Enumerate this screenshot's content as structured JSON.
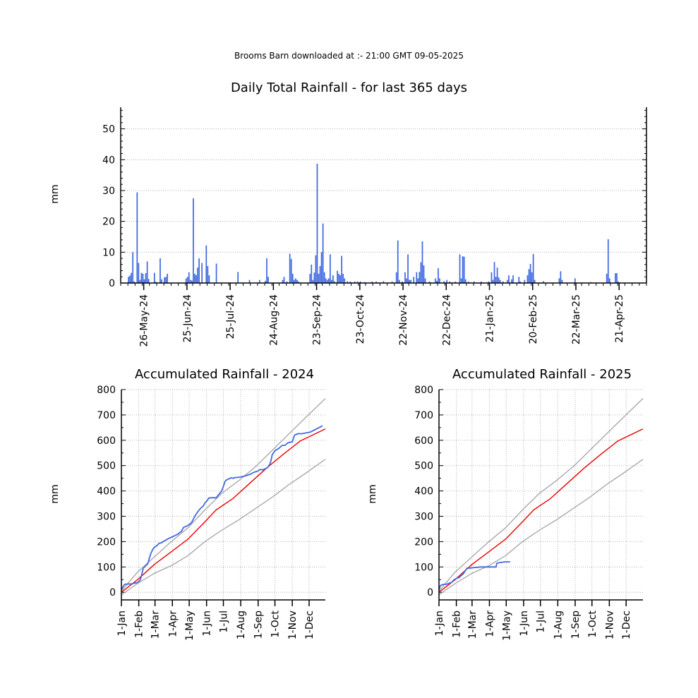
{
  "header": "Brooms Barn downloaded at :- 21:00 GMT 09-05-2025",
  "colors": {
    "observed": "#4169e1",
    "mean": "#ee0000",
    "band": "#a9a9a9",
    "grid": "#b0b0b0"
  },
  "chart_data": [
    {
      "type": "bar",
      "title": "Daily Total Rainfall - for last 365 days",
      "ylabel": "mm",
      "ylim": [
        0,
        57
      ],
      "yticks": [
        0,
        10,
        20,
        30,
        40,
        50
      ],
      "x_start": "2024-05-10",
      "x_end": "2025-05-09",
      "xtick_labels": [
        "26-May-24",
        "25-Jun-24",
        "25-Jul-24",
        "24-Aug-24",
        "23-Sep-24",
        "23-Oct-24",
        "22-Nov-24",
        "22-Dec-24",
        "21-Jan-25",
        "20-Feb-25",
        "22-Mar-25",
        "21-Apr-25"
      ],
      "grid": "horizontal dotted",
      "points": [
        [
          "2024-05-15",
          2.0
        ],
        [
          "2024-05-16",
          2.4
        ],
        [
          "2024-05-17",
          3.3
        ],
        [
          "2024-05-18",
          10.0
        ],
        [
          "2024-05-19",
          0.5
        ],
        [
          "2024-05-21",
          29.4
        ],
        [
          "2024-05-22",
          6.5
        ],
        [
          "2024-05-23",
          1.0
        ],
        [
          "2024-05-24",
          3.3
        ],
        [
          "2024-05-25",
          3.0
        ],
        [
          "2024-05-26",
          1.2
        ],
        [
          "2024-05-27",
          3.2
        ],
        [
          "2024-05-28",
          7.0
        ],
        [
          "2024-05-29",
          1.3
        ],
        [
          "2024-06-02",
          3.3
        ],
        [
          "2024-06-03",
          0.4
        ],
        [
          "2024-06-06",
          8.0
        ],
        [
          "2024-06-07",
          1.2
        ],
        [
          "2024-06-09",
          1.8
        ],
        [
          "2024-06-10",
          2.0
        ],
        [
          "2024-06-11",
          3.0
        ],
        [
          "2024-06-24",
          1.5
        ],
        [
          "2024-06-25",
          2.0
        ],
        [
          "2024-06-26",
          3.5
        ],
        [
          "2024-06-27",
          1.0
        ],
        [
          "2024-06-28",
          0.8
        ],
        [
          "2024-06-29",
          27.5
        ],
        [
          "2024-06-30",
          3.0
        ],
        [
          "2024-07-01",
          2.5
        ],
        [
          "2024-07-02",
          5.0
        ],
        [
          "2024-07-03",
          8.0
        ],
        [
          "2024-07-05",
          6.5
        ],
        [
          "2024-07-08",
          12.2
        ],
        [
          "2024-07-09",
          5.5
        ],
        [
          "2024-07-10",
          2.5
        ],
        [
          "2024-07-15",
          6.3
        ],
        [
          "2024-07-30",
          3.6
        ],
        [
          "2024-08-07",
          1.0
        ],
        [
          "2024-08-14",
          1.0
        ],
        [
          "2024-08-18",
          0.7
        ],
        [
          "2024-08-19",
          8.0
        ],
        [
          "2024-08-20",
          2.0
        ],
        [
          "2024-08-30",
          1.0
        ],
        [
          "2024-08-31",
          2.0
        ],
        [
          "2024-09-02",
          0.5
        ],
        [
          "2024-09-04",
          9.5
        ],
        [
          "2024-09-05",
          7.8
        ],
        [
          "2024-09-06",
          3.0
        ],
        [
          "2024-09-07",
          1.0
        ],
        [
          "2024-09-08",
          1.5
        ],
        [
          "2024-09-09",
          1.0
        ],
        [
          "2024-09-10",
          0.5
        ],
        [
          "2024-09-18",
          3.0
        ],
        [
          "2024-09-19",
          6.0
        ],
        [
          "2024-09-20",
          1.0
        ],
        [
          "2024-09-21",
          3.4
        ],
        [
          "2024-09-22",
          9.0
        ],
        [
          "2024-09-23",
          38.7
        ],
        [
          "2024-09-24",
          3.0
        ],
        [
          "2024-09-25",
          5.5
        ],
        [
          "2024-09-26",
          10.0
        ],
        [
          "2024-09-27",
          19.3
        ],
        [
          "2024-09-28",
          3.5
        ],
        [
          "2024-09-29",
          1.5
        ],
        [
          "2024-09-30",
          1.0
        ],
        [
          "2024-10-01",
          1.5
        ],
        [
          "2024-10-02",
          9.3
        ],
        [
          "2024-10-03",
          1.0
        ],
        [
          "2024-10-04",
          2.5
        ],
        [
          "2024-10-05",
          0.6
        ],
        [
          "2024-10-07",
          4.0
        ],
        [
          "2024-10-08",
          3.0
        ],
        [
          "2024-10-09",
          2.5
        ],
        [
          "2024-10-10",
          8.8
        ],
        [
          "2024-10-11",
          3.0
        ],
        [
          "2024-10-12",
          1.5
        ],
        [
          "2024-10-14",
          0.6
        ],
        [
          "2024-10-16",
          0.5
        ],
        [
          "2024-10-19",
          0.5
        ],
        [
          "2024-10-21",
          0.5
        ],
        [
          "2024-10-23",
          0.5
        ],
        [
          "2024-10-26",
          0.3
        ],
        [
          "2024-10-31",
          0.5
        ],
        [
          "2024-11-03",
          0.5
        ],
        [
          "2024-11-08",
          0.6
        ],
        [
          "2024-11-14",
          0.5
        ],
        [
          "2024-11-17",
          3.5
        ],
        [
          "2024-11-18",
          13.8
        ],
        [
          "2024-11-19",
          1.0
        ],
        [
          "2024-11-21",
          0.5
        ],
        [
          "2024-11-23",
          3.5
        ],
        [
          "2024-11-24",
          1.5
        ],
        [
          "2024-11-25",
          9.3
        ],
        [
          "2024-11-26",
          1.0
        ],
        [
          "2024-11-27",
          1.0
        ],
        [
          "2024-11-29",
          2.0
        ],
        [
          "2024-12-01",
          3.5
        ],
        [
          "2024-12-02",
          1.5
        ],
        [
          "2024-12-03",
          3.6
        ],
        [
          "2024-12-04",
          6.7
        ],
        [
          "2024-12-05",
          13.5
        ],
        [
          "2024-12-06",
          5.7
        ],
        [
          "2024-12-07",
          1.5
        ],
        [
          "2024-12-10",
          0.5
        ],
        [
          "2024-12-14",
          1.5
        ],
        [
          "2024-12-15",
          0.7
        ],
        [
          "2024-12-16",
          4.8
        ],
        [
          "2024-12-17",
          1.5
        ],
        [
          "2024-12-20",
          0.6
        ],
        [
          "2024-12-22",
          1.0
        ],
        [
          "2024-12-24",
          0.5
        ],
        [
          "2024-12-28",
          0.5
        ],
        [
          "2024-12-31",
          9.3
        ],
        [
          "2025-01-01",
          1.5
        ],
        [
          "2025-01-02",
          8.7
        ],
        [
          "2025-01-03",
          8.5
        ],
        [
          "2025-01-04",
          1.2
        ],
        [
          "2025-01-06",
          0.5
        ],
        [
          "2025-01-10",
          0.5
        ],
        [
          "2025-01-15",
          0.5
        ],
        [
          "2025-01-20",
          0.5
        ],
        [
          "2025-01-22",
          3.5
        ],
        [
          "2025-01-23",
          1.0
        ],
        [
          "2025-01-24",
          6.8
        ],
        [
          "2025-01-25",
          2.0
        ],
        [
          "2025-01-26",
          5.0
        ],
        [
          "2025-01-27",
          1.8
        ],
        [
          "2025-01-28",
          1.0
        ],
        [
          "2025-01-30",
          0.5
        ],
        [
          "2025-02-02",
          1.0
        ],
        [
          "2025-02-03",
          2.5
        ],
        [
          "2025-02-05",
          1.2
        ],
        [
          "2025-02-06",
          2.5
        ],
        [
          "2025-02-10",
          2.0
        ],
        [
          "2025-02-11",
          0.5
        ],
        [
          "2025-02-14",
          1.0
        ],
        [
          "2025-02-16",
          2.5
        ],
        [
          "2025-02-17",
          4.5
        ],
        [
          "2025-02-18",
          6.2
        ],
        [
          "2025-02-19",
          3.5
        ],
        [
          "2025-02-20",
          9.4
        ],
        [
          "2025-02-21",
          1.0
        ],
        [
          "2025-02-27",
          0.6
        ],
        [
          "2025-03-10",
          1.5
        ],
        [
          "2025-03-11",
          3.8
        ],
        [
          "2025-03-12",
          1.0
        ],
        [
          "2025-03-21",
          1.5
        ],
        [
          "2025-04-01",
          0.3
        ],
        [
          "2025-04-12",
          3.0
        ],
        [
          "2025-04-13",
          14.2
        ],
        [
          "2025-04-14",
          1.5
        ],
        [
          "2025-04-18",
          3.2
        ],
        [
          "2025-04-19",
          3.2
        ],
        [
          "2025-04-20",
          0.5
        ]
      ]
    },
    {
      "type": "line",
      "title": "Accumulated Rainfall - 2024",
      "ylabel": "mm",
      "ylim": [
        -30,
        800
      ],
      "yticks": [
        0,
        100,
        200,
        300,
        400,
        500,
        600,
        700,
        800
      ],
      "xticks": [
        1,
        32,
        61,
        92,
        122,
        153,
        183,
        214,
        245,
        275,
        306,
        336
      ],
      "xtick_labels": [
        "1-Jan",
        "1-Feb",
        "1-Mar",
        "1-Apr",
        "1-May",
        "1-Jun",
        "1-Jul",
        "1-Aug",
        "1-Sep",
        "1-Oct",
        "1-Nov",
        "1-Dec"
      ],
      "grid": "dotted both",
      "series": [
        {
          "role": "observed",
          "x": [
            1,
            6,
            8,
            18,
            29,
            32,
            35,
            40,
            48,
            53,
            57,
            60,
            65,
            68,
            72,
            78,
            85,
            95,
            102,
            105,
            108,
            112,
            118,
            125,
            127,
            132,
            138,
            143,
            147,
            150,
            154,
            157,
            162,
            170,
            180,
            183,
            186,
            189,
            193,
            197,
            201,
            203,
            207,
            213,
            220,
            226,
            232,
            238,
            244,
            249,
            252,
            255,
            262,
            266,
            268,
            270,
            274,
            276,
            282,
            288,
            293,
            298,
            306,
            310,
            316,
            323,
            328,
            333,
            338,
            360
          ],
          "y": [
            10,
            30,
            32,
            33,
            38,
            42,
            50,
            95,
            112,
            150,
            170,
            178,
            185,
            193,
            195,
            203,
            212,
            222,
            230,
            236,
            240,
            256,
            262,
            272,
            278,
            300,
            320,
            333,
            340,
            352,
            362,
            372,
            373,
            373,
            400,
            418,
            438,
            444,
            448,
            452,
            450,
            453,
            453,
            455,
            458,
            462,
            467,
            474,
            478,
            485,
            483,
            485,
            492,
            506,
            520,
            542,
            556,
            560,
            568,
            580,
            580,
            590,
            594,
            620,
            626,
            626,
            628,
            630,
            632,
            657
          ]
        },
        {
          "role": "mean",
          "x": [
            1,
            30,
            60,
            90,
            120,
            150,
            170,
            200,
            230,
            260,
            290,
            320,
            365
          ],
          "y": [
            0,
            50,
            110,
            160,
            210,
            278,
            325,
            370,
            430,
            490,
            545,
            597,
            645
          ]
        },
        {
          "role": "upper",
          "x": [
            1,
            30,
            60,
            90,
            120,
            150,
            180,
            210,
            240,
            270,
            300,
            330,
            365
          ],
          "y": [
            5,
            80,
            140,
            200,
            255,
            325,
            390,
            440,
            495,
            560,
            625,
            690,
            765
          ]
        },
        {
          "role": "lower",
          "x": [
            1,
            30,
            60,
            90,
            120,
            150,
            180,
            210,
            240,
            270,
            300,
            330,
            365
          ],
          "y": [
            -10,
            35,
            75,
            105,
            145,
            200,
            245,
            285,
            330,
            375,
            425,
            470,
            525
          ]
        }
      ]
    },
    {
      "type": "line",
      "title": "Accumulated Rainfall - 2025",
      "ylabel": "mm",
      "ylim": [
        -30,
        800
      ],
      "yticks": [
        0,
        100,
        200,
        300,
        400,
        500,
        600,
        700,
        800
      ],
      "xticks": [
        1,
        32,
        60,
        91,
        121,
        152,
        182,
        213,
        244,
        274,
        305,
        335
      ],
      "xtick_labels": [
        "1-Jan",
        "1-Feb",
        "1-Mar",
        "1-Apr",
        "1-May",
        "1-Jun",
        "1-Jul",
        "1-Aug",
        "1-Sep",
        "1-Oct",
        "1-Nov",
        "1-Dec"
      ],
      "grid": "dotted both",
      "series": [
        {
          "role": "observed",
          "x": [
            1,
            3,
            6,
            15,
            24,
            27,
            32,
            37,
            40,
            44,
            48,
            51,
            55,
            62,
            71,
            75,
            82,
            92,
            103,
            104,
            106,
            112,
            115,
            118,
            120,
            128
          ],
          "y": [
            10,
            25,
            30,
            32,
            40,
            48,
            55,
            58,
            65,
            72,
            85,
            95,
            95,
            97,
            99,
            100,
            100,
            100,
            100,
            114,
            116,
            118,
            119,
            120,
            120,
            120
          ]
        },
        {
          "role": "mean",
          "x": [
            1,
            30,
            60,
            90,
            120,
            150,
            170,
            200,
            230,
            260,
            290,
            320,
            365
          ],
          "y": [
            0,
            50,
            110,
            160,
            210,
            278,
            325,
            370,
            430,
            490,
            545,
            597,
            645
          ]
        },
        {
          "role": "upper",
          "x": [
            1,
            30,
            60,
            90,
            120,
            150,
            180,
            210,
            240,
            270,
            300,
            330,
            365
          ],
          "y": [
            5,
            80,
            140,
            200,
            255,
            325,
            390,
            440,
            495,
            560,
            625,
            690,
            765
          ]
        },
        {
          "role": "lower",
          "x": [
            1,
            30,
            60,
            90,
            120,
            150,
            180,
            210,
            240,
            270,
            300,
            330,
            365
          ],
          "y": [
            -10,
            35,
            75,
            105,
            145,
            200,
            245,
            285,
            330,
            375,
            425,
            470,
            525
          ]
        }
      ]
    }
  ]
}
